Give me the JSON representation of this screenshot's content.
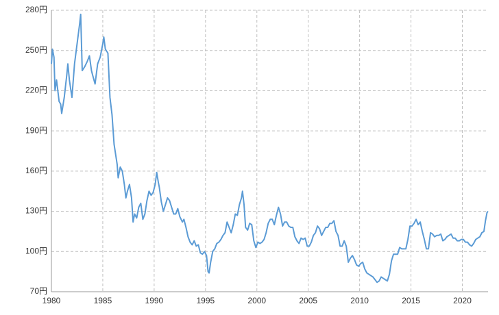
{
  "chart_data": {
    "type": "line",
    "x": [
      1980.0,
      1980.1,
      1980.25,
      1980.35,
      1980.5,
      1980.75,
      1980.9,
      1981.0,
      1981.25,
      1981.5,
      1981.6,
      1981.75,
      1981.9,
      1982.0,
      1982.25,
      1982.5,
      1982.75,
      1982.85,
      1983.0,
      1983.25,
      1983.5,
      1983.7,
      1983.9,
      1984.0,
      1984.25,
      1984.5,
      1984.75,
      1985.0,
      1985.1,
      1985.25,
      1985.5,
      1985.7,
      1985.9,
      1986.1,
      1986.2,
      1986.4,
      1986.5,
      1986.7,
      1986.9,
      1987.1,
      1987.25,
      1987.4,
      1987.6,
      1987.8,
      1987.95,
      1988.1,
      1988.3,
      1988.5,
      1988.7,
      1988.9,
      1989.1,
      1989.3,
      1989.5,
      1989.7,
      1989.9,
      1990.1,
      1990.25,
      1990.4,
      1990.5,
      1990.7,
      1990.9,
      1991.1,
      1991.3,
      1991.5,
      1991.7,
      1991.9,
      1992.1,
      1992.3,
      1992.5,
      1992.75,
      1992.9,
      1993.1,
      1993.3,
      1993.5,
      1993.7,
      1993.9,
      1994.1,
      1994.3,
      1994.5,
      1994.7,
      1994.9,
      1995.1,
      1995.25,
      1995.35,
      1995.5,
      1995.7,
      1995.9,
      1996.1,
      1996.3,
      1996.5,
      1996.7,
      1996.9,
      1997.1,
      1997.3,
      1997.5,
      1997.7,
      1997.9,
      1998.1,
      1998.3,
      1998.5,
      1998.6,
      1998.75,
      1998.9,
      1999.1,
      1999.3,
      1999.5,
      1999.7,
      1999.9,
      2000.1,
      2000.3,
      2000.5,
      2000.7,
      2000.9,
      2001.1,
      2001.3,
      2001.5,
      2001.7,
      2001.9,
      2002.1,
      2002.3,
      2002.5,
      2002.7,
      2002.9,
      2003.1,
      2003.3,
      2003.5,
      2003.7,
      2003.9,
      2004.1,
      2004.3,
      2004.5,
      2004.7,
      2004.9,
      2005.1,
      2005.3,
      2005.5,
      2005.7,
      2005.9,
      2006.1,
      2006.3,
      2006.5,
      2006.7,
      2006.9,
      2007.1,
      2007.3,
      2007.5,
      2007.7,
      2007.9,
      2008.1,
      2008.3,
      2008.5,
      2008.7,
      2008.9,
      2009.1,
      2009.3,
      2009.5,
      2009.7,
      2009.9,
      2010.1,
      2010.3,
      2010.5,
      2010.7,
      2010.9,
      2011.1,
      2011.3,
      2011.5,
      2011.7,
      2011.9,
      2012.1,
      2012.3,
      2012.5,
      2012.7,
      2012.9,
      2013.1,
      2013.3,
      2013.5,
      2013.7,
      2013.9,
      2014.1,
      2014.3,
      2014.5,
      2014.7,
      2014.9,
      2015.1,
      2015.3,
      2015.5,
      2015.7,
      2015.9,
      2016.1,
      2016.3,
      2016.5,
      2016.7,
      2016.9,
      2017.1,
      2017.3,
      2017.5,
      2017.7,
      2017.9,
      2018.1,
      2018.3,
      2018.5,
      2018.7,
      2018.9,
      2019.1,
      2019.3,
      2019.5,
      2019.7,
      2019.9,
      2020.1,
      2020.3,
      2020.5,
      2020.7,
      2020.9,
      2021.1,
      2021.3,
      2021.5,
      2021.7,
      2021.9,
      2022.1,
      2022.25,
      2022.4,
      2022.5
    ],
    "values": [
      240,
      251,
      245,
      220,
      228,
      212,
      210,
      203,
      215,
      232,
      240,
      228,
      220,
      215,
      240,
      255,
      270,
      277,
      235,
      238,
      242,
      246,
      235,
      232,
      225,
      240,
      245,
      255,
      260,
      251,
      248,
      215,
      202,
      180,
      175,
      165,
      155,
      163,
      160,
      150,
      140,
      145,
      150,
      140,
      122,
      128,
      125,
      133,
      136,
      124,
      128,
      138,
      145,
      142,
      144,
      150,
      159,
      152,
      148,
      137,
      130,
      135,
      140,
      138,
      133,
      128,
      128,
      132,
      126,
      122,
      124,
      118,
      111,
      107,
      105,
      108,
      104,
      105,
      99,
      98,
      100,
      97,
      85,
      84,
      92,
      100,
      102,
      106,
      107,
      109,
      112,
      114,
      122,
      118,
      114,
      120,
      128,
      127,
      135,
      140,
      145,
      135,
      118,
      116,
      121,
      120,
      108,
      103,
      107,
      106,
      107,
      109,
      114,
      121,
      124,
      124,
      120,
      127,
      133,
      128,
      119,
      122,
      122,
      119,
      118,
      118,
      111,
      108,
      106,
      110,
      109,
      110,
      104,
      104,
      107,
      112,
      114,
      119,
      117,
      112,
      115,
      118,
      118,
      121,
      121,
      123,
      115,
      112,
      104,
      104,
      108,
      104,
      92,
      95,
      97,
      94,
      90,
      89,
      91,
      92,
      87,
      84,
      83,
      82,
      81,
      79,
      77,
      78,
      81,
      80,
      79,
      78,
      83,
      93,
      98,
      98,
      98,
      103,
      102,
      102,
      102,
      109,
      119,
      119,
      121,
      124,
      120,
      122,
      115,
      109,
      102,
      102,
      114,
      113,
      111,
      112,
      112,
      113,
      108,
      109,
      111,
      112,
      113,
      110,
      110,
      108,
      108,
      109,
      109,
      107,
      107,
      105,
      104,
      106,
      109,
      110,
      111,
      114,
      115,
      123,
      129,
      130
    ],
    "color": "#5b9bd5",
    "xlim": [
      1980,
      2022.5
    ],
    "xticks": [
      1980,
      1985,
      1990,
      1995,
      2000,
      2005,
      2010,
      2015,
      2020
    ],
    "ylim": [
      70,
      280
    ],
    "yticks": [
      {
        "value": 70,
        "label": "70円"
      },
      {
        "value": 100,
        "label": "100円"
      },
      {
        "value": 130,
        "label": "130円"
      },
      {
        "value": 160,
        "label": "160円"
      },
      {
        "value": 190,
        "label": "190円"
      },
      {
        "value": 220,
        "label": "220円"
      },
      {
        "value": 250,
        "label": "250円"
      },
      {
        "value": 280,
        "label": "280円"
      }
    ],
    "grid": true
  }
}
